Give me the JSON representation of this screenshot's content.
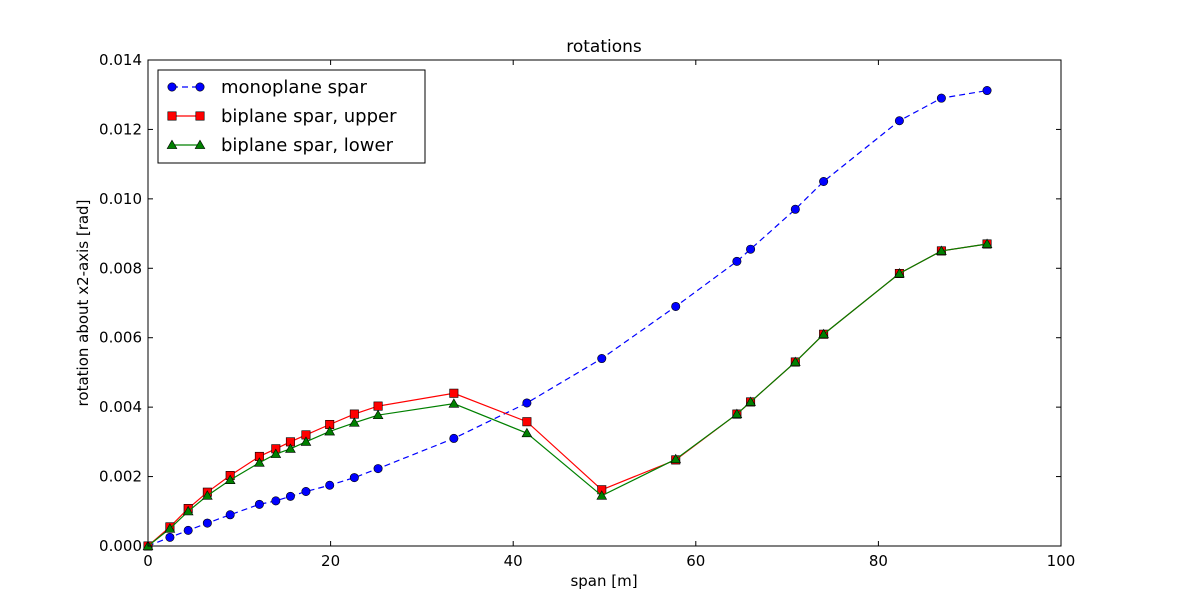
{
  "chart_data": {
    "type": "line",
    "title": "rotations",
    "xlabel": "span [m]",
    "ylabel": "rotation about x2-axis [rad]",
    "xlim": [
      0,
      100
    ],
    "ylim": [
      0,
      0.014
    ],
    "xticks": [
      0,
      20,
      40,
      60,
      80,
      100
    ],
    "xtick_labels": [
      "0",
      "20",
      "40",
      "60",
      "80",
      "100"
    ],
    "yticks": [
      0,
      0.002,
      0.004,
      0.006,
      0.008,
      0.01,
      0.012,
      0.014
    ],
    "ytick_labels": [
      "0.000",
      "0.002",
      "0.004",
      "0.006",
      "0.008",
      "0.010",
      "0.012",
      "0.014"
    ],
    "grid": false,
    "legend_position": "top-left",
    "series": [
      {
        "name": "monoplane spar",
        "color": "#0000ff",
        "linestyle": "dashed",
        "marker": "circle",
        "x": [
          0,
          2.4,
          4.4,
          6.5,
          9.0,
          12.2,
          14.0,
          15.6,
          17.3,
          19.9,
          22.6,
          25.2,
          33.5,
          41.5,
          49.7,
          57.8,
          64.5,
          66.0,
          70.9,
          74.0,
          82.3,
          86.9,
          91.9
        ],
        "y": [
          0,
          0.00025,
          0.00045,
          0.00066,
          0.0009,
          0.0012,
          0.0013,
          0.00143,
          0.00157,
          0.00175,
          0.00197,
          0.00223,
          0.0031,
          0.00412,
          0.0054,
          0.0069,
          0.0082,
          0.00855,
          0.0097,
          0.0105,
          0.01225,
          0.0129,
          0.01312
        ]
      },
      {
        "name": "biplane spar, upper",
        "color": "#ff0000",
        "linestyle": "solid",
        "marker": "square",
        "x": [
          0,
          2.4,
          4.4,
          6.5,
          9.0,
          12.2,
          14.0,
          15.6,
          17.3,
          19.9,
          22.6,
          25.2,
          33.5,
          41.5,
          49.7,
          57.8,
          64.5,
          66.0,
          70.9,
          74.0,
          82.3,
          86.9,
          91.9
        ],
        "y": [
          0,
          0.00055,
          0.00108,
          0.00155,
          0.00203,
          0.00258,
          0.0028,
          0.003,
          0.0032,
          0.0035,
          0.0038,
          0.00403,
          0.0044,
          0.00358,
          0.00162,
          0.00248,
          0.0038,
          0.00415,
          0.0053,
          0.0061,
          0.00785,
          0.0085,
          0.0087
        ]
      },
      {
        "name": "biplane spar, lower",
        "color": "#008000",
        "linestyle": "solid",
        "marker": "triangle",
        "x": [
          0,
          2.4,
          4.4,
          6.5,
          9.0,
          12.2,
          14.0,
          15.6,
          17.3,
          19.9,
          22.6,
          25.2,
          33.5,
          41.5,
          49.7,
          57.8,
          64.5,
          66.0,
          70.9,
          74.0,
          82.3,
          86.9,
          91.9
        ],
        "y": [
          0,
          0.0005,
          0.001,
          0.00145,
          0.0019,
          0.0024,
          0.00265,
          0.0028,
          0.003,
          0.0033,
          0.00355,
          0.00377,
          0.0041,
          0.00325,
          0.00145,
          0.0025,
          0.0038,
          0.00415,
          0.0053,
          0.0061,
          0.00785,
          0.0085,
          0.0087
        ]
      }
    ]
  }
}
